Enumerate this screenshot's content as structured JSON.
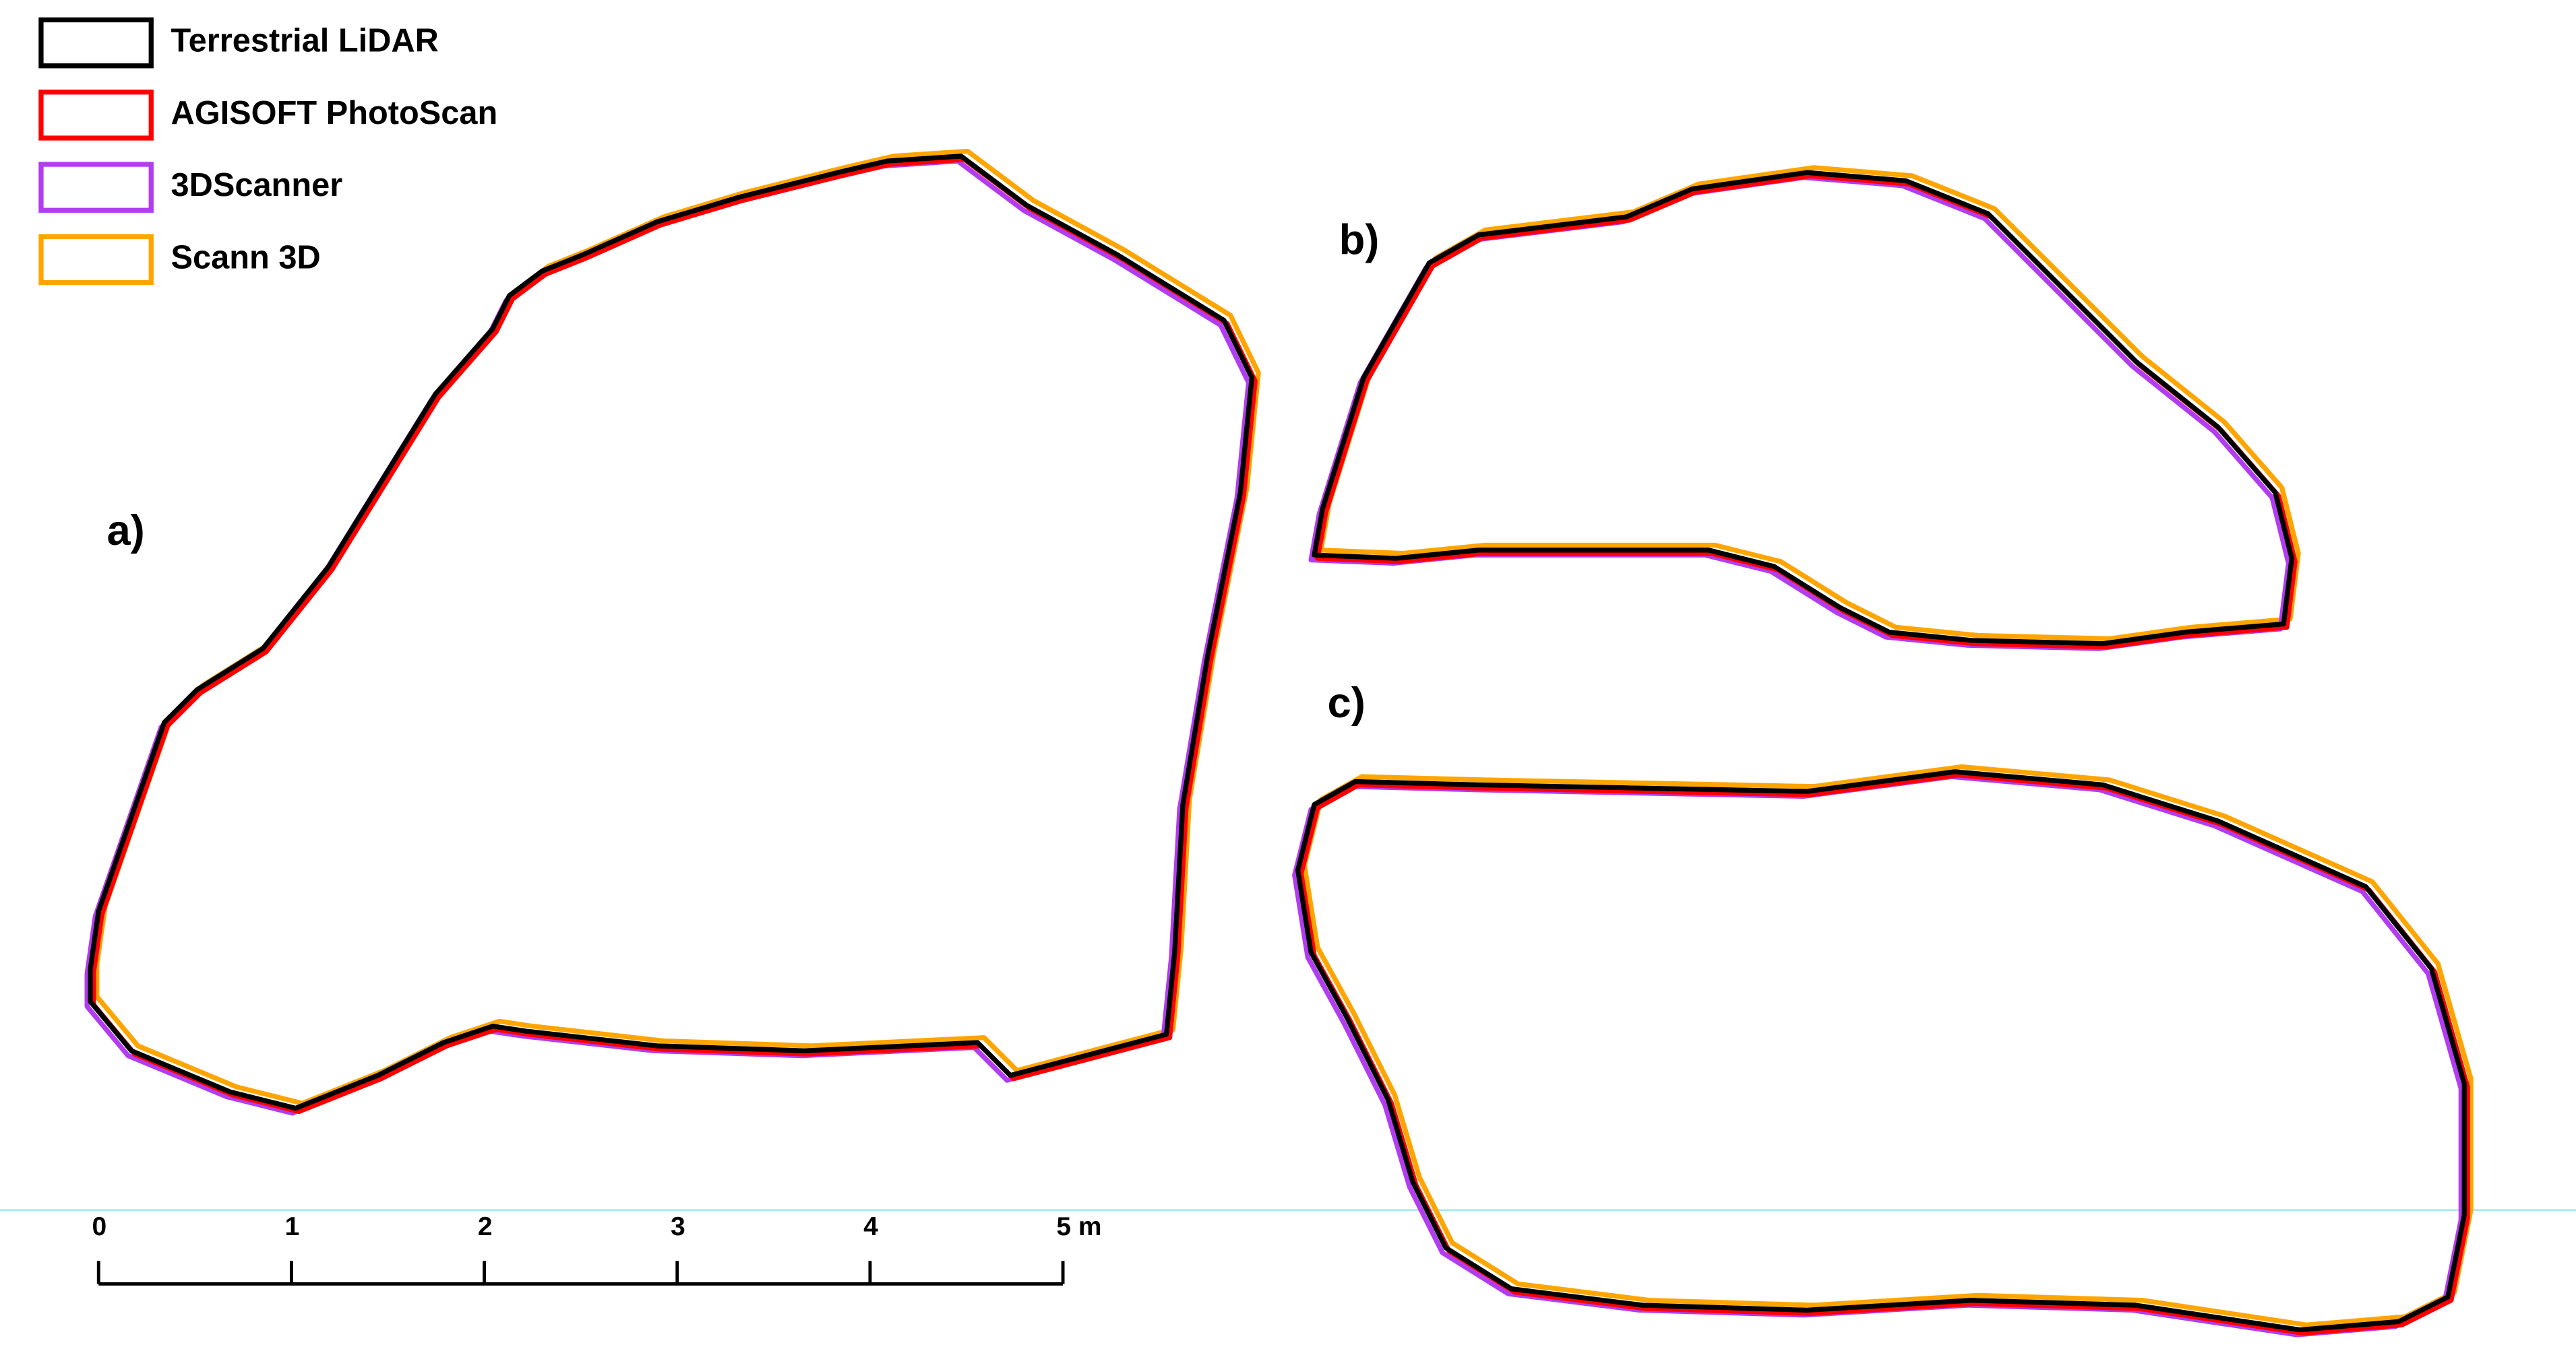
{
  "legend": [
    {
      "name": "Terrestrial LiDAR",
      "color": "#000000"
    },
    {
      "name": "AGISOFT PhotoScan",
      "color": "#ff0000"
    },
    {
      "name": "3DScanner",
      "color": "#b23cf0"
    },
    {
      "name": "Scann 3D",
      "color": "#ffa500"
    }
  ],
  "panels": [
    "a)",
    "b)",
    "c)"
  ],
  "scale_bar": {
    "labels": [
      "0",
      "1",
      "2",
      "3",
      "4",
      "5 m"
    ]
  }
}
